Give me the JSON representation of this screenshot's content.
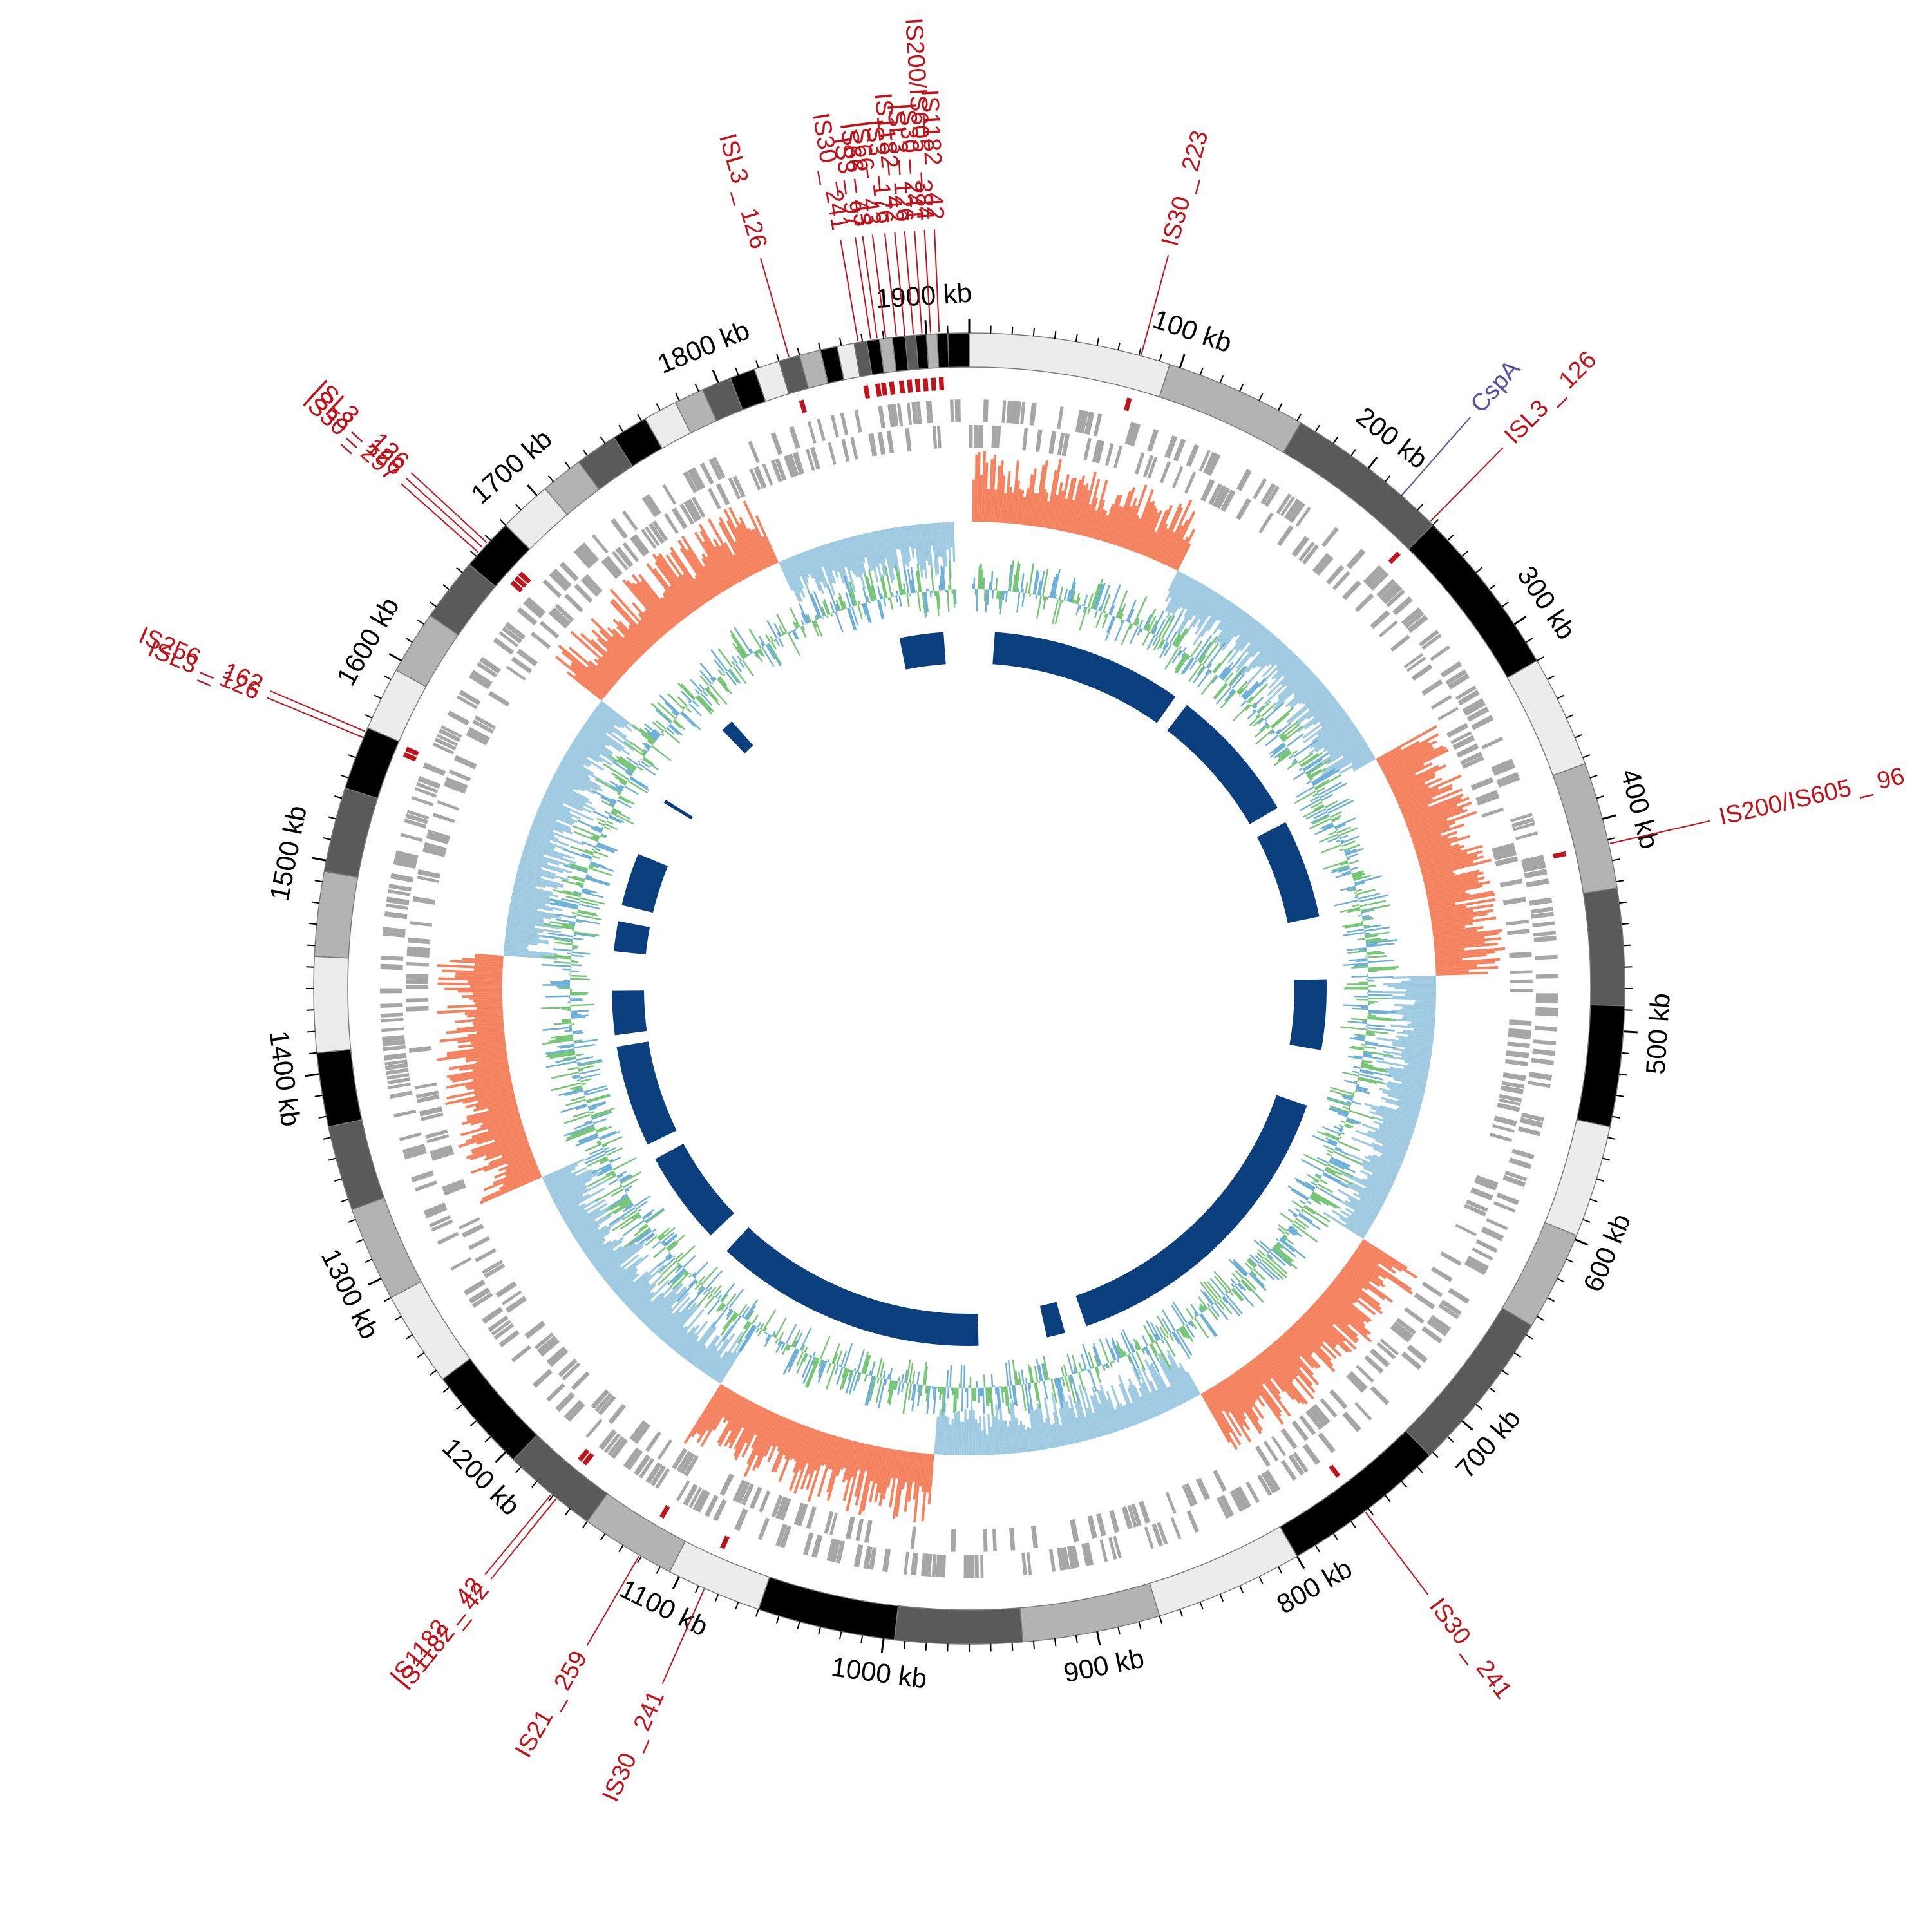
{
  "genome": {
    "length_kb": 1920,
    "scale_labels": [
      "100 kb",
      "200 kb",
      "300 kb",
      "400 kb",
      "500 kb",
      "600 kb",
      "700 kb",
      "800 kb",
      "900 kb",
      "1000 kb",
      "1100 kb",
      "1200 kb",
      "1300 kb",
      "1400 kb",
      "1500 kb",
      "1600 kb",
      "1700 kb",
      "1800 kb",
      "1900 kb"
    ],
    "scale_positions_kb": [
      100,
      200,
      300,
      400,
      500,
      600,
      700,
      800,
      900,
      1000,
      1100,
      1200,
      1300,
      1400,
      1500,
      1600,
      1700,
      1800,
      1900
    ]
  },
  "colors": {
    "is_element": "#c0141c",
    "gene_marker": "#5a4fa0",
    "gene_track": "#a6a6a6",
    "gc_skew_positive": "#f4825f",
    "gc_skew_negative": "#9ecae1",
    "gc_content": "#74c476",
    "gc_content_alt": "#6baed6",
    "blast_ring": "#0b3f7e",
    "scale_black": "#000000",
    "scale_dark": "#5a5a5a",
    "scale_mid": "#b3b3b3",
    "scale_light": "#ececec"
  },
  "is_elements": [
    {
      "label": "IS30 _ 223",
      "kb": 81
    },
    {
      "label": "ISL3 _ 126",
      "kb": 238
    },
    {
      "label": "IS200/IS605 _ 96",
      "kb": 412
    },
    {
      "label": "IS30 _ 241",
      "kb": 762
    },
    {
      "label": "IS30 _ 241",
      "kb": 1087
    },
    {
      "label": "IS21 _ 259",
      "kb": 1121
    },
    {
      "label": "IS1182 _ 42",
      "kb": 1168
    },
    {
      "label": "IS1182 _ 42",
      "kb": 1171
    },
    {
      "label": "ISL3 _ 126",
      "kb": 1560
    },
    {
      "label": "IS256 _ 162",
      "kb": 1563
    },
    {
      "label": "IS30 _ 297",
      "kb": 1662
    },
    {
      "label": "ISL3 _ 126",
      "kb": 1665
    },
    {
      "label": "ISL3 _ 126",
      "kb": 1668
    },
    {
      "label": "ISL3 _ 126",
      "kb": 1835
    },
    {
      "label": "IS30 _ 241",
      "kb": 1868
    },
    {
      "label": "IS3 _ 97",
      "kb": 1874
    },
    {
      "label": "IS66 _ 43",
      "kb": 1877
    },
    {
      "label": "IS66 _ 43",
      "kb": 1881
    },
    {
      "label": "IS3 _ 176",
      "kb": 1886
    },
    {
      "label": "IS1182 _ 42",
      "kb": 1890
    },
    {
      "label": "ISL3 _ 126",
      "kb": 1894
    },
    {
      "label": "IS30 _ 241",
      "kb": 1898
    },
    {
      "label": "IS200/IS605 _ 384",
      "kb": 1902
    },
    {
      "label": "IS1182 _ 42",
      "kb": 1906
    }
  ],
  "genes": [
    {
      "label": "CspA",
      "kb": 220
    }
  ]
}
